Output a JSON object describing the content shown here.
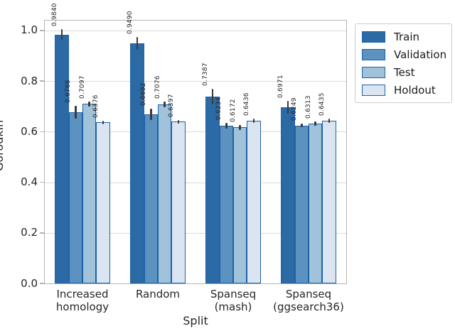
{
  "chart_data": {
    "type": "bar",
    "title": "",
    "xlabel": "Split",
    "ylabel": "Gorodkin",
    "ylim": [
      0.0,
      1.0391
    ],
    "yticks": [
      0.0,
      0.2,
      0.4,
      0.6,
      0.8,
      1.0
    ],
    "grid": true,
    "categories": [
      "Increased\nhomology",
      "Random",
      "Spanseq\n(mash)",
      "Spanseq\n(ggsearch36)"
    ],
    "series": [
      {
        "name": "Train",
        "color": "#2c6aa5",
        "values": [
          0.984,
          0.949,
          0.7387,
          0.6971
        ],
        "errors": [
          0.021,
          0.025,
          0.031,
          0.026
        ]
      },
      {
        "name": "Validation",
        "color": "#5b92bf",
        "values": [
          0.6766,
          0.6692,
          0.6234,
          0.6249
        ],
        "errors": [
          0.026,
          0.022,
          0.012,
          0.007
        ]
      },
      {
        "name": "Test",
        "color": "#a0c3db",
        "values": [
          0.7097,
          0.7076,
          0.6172,
          0.6313
        ],
        "errors": [
          0.01,
          0.012,
          0.01,
          0.008
        ]
      },
      {
        "name": "Holdout",
        "color": "#dbe5f1",
        "values": [
          0.6376,
          0.6397,
          0.6436,
          0.6435
        ],
        "errors": [
          0.007,
          0.007,
          0.008,
          0.008
        ]
      }
    ],
    "value_label_decimals": 4,
    "bar_edge_color": "#1e62a8",
    "error_bar_color": "#3a3a3a",
    "legend": {
      "position": "upper-right-outside",
      "entries": [
        "Train",
        "Validation",
        "Test",
        "Holdout"
      ]
    }
  }
}
